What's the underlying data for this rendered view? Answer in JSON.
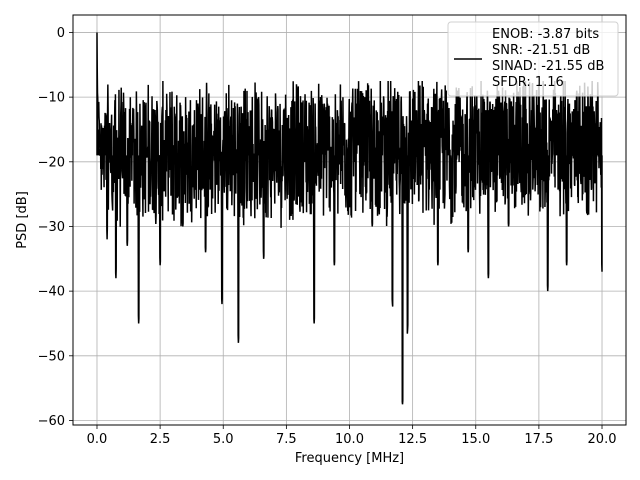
{
  "chart_data": {
    "type": "line",
    "title": "",
    "xlabel": "Frequency [MHz]",
    "ylabel": "PSD [dB]",
    "xlim": [
      -0.95,
      20.95
    ],
    "ylim": [
      -60.7,
      2.7
    ],
    "grid": true,
    "x_ticks": [
      0.0,
      2.5,
      5.0,
      7.5,
      10.0,
      12.5,
      15.0,
      17.5,
      20.0
    ],
    "x_tick_labels": [
      "0.0",
      "2.5",
      "5.0",
      "7.5",
      "10.0",
      "12.5",
      "15.0",
      "17.5",
      "20.0"
    ],
    "y_ticks": [
      0,
      -10,
      -20,
      -30,
      -40,
      -50,
      -60
    ],
    "y_tick_labels": [
      "0",
      "−10",
      "−20",
      "−30",
      "−40",
      "−50",
      "−60"
    ],
    "line_color": "#000000",
    "legend": {
      "placement": "top-right",
      "entries": [
        "ENOB: -3.87 bits",
        "SNR: -21.51 dB",
        "SINAD: -21.55 dB",
        "SFDR: 1.16"
      ]
    },
    "series": [
      {
        "x": [
          0.0,
          0.02,
          0.05,
          0.1,
          0.2,
          0.3,
          0.4,
          0.5,
          0.6,
          0.75,
          0.9,
          1.0,
          1.2,
          1.4,
          1.65,
          2.0,
          2.3,
          2.5,
          2.8,
          3.1,
          3.4,
          3.6,
          4.0,
          4.3,
          4.6,
          4.95,
          5.3,
          5.6,
          6.0,
          6.4,
          6.6,
          7.0,
          7.4,
          7.8,
          8.2,
          8.6,
          9.0,
          9.4,
          9.8,
          10.2,
          10.6,
          10.9,
          11.3,
          11.7,
          12.1,
          12.3,
          12.7,
          13.1,
          13.5,
          13.9,
          14.3,
          14.7,
          15.1,
          15.5,
          15.9,
          16.3,
          16.7,
          17.1,
          17.5,
          17.85,
          18.2,
          18.6,
          19.0,
          19.4,
          19.8,
          20.0
        ],
        "y": [
          0.0,
          -12.0,
          -15.0,
          -18.0,
          -22.0,
          -16.0,
          -32.0,
          -14.0,
          -26.0,
          -38.0,
          -16.0,
          -22.0,
          -33.0,
          -14.0,
          -45.0,
          -18.0,
          -12.0,
          -36.0,
          -17.0,
          -13.0,
          -30.0,
          -20.0,
          -11.0,
          -34.0,
          -16.0,
          -42.0,
          -13.0,
          -48.0,
          -18.0,
          -10.0,
          -35.0,
          -15.0,
          -12.0,
          -26.0,
          -17.0,
          -45.0,
          -11.0,
          -36.0,
          -14.0,
          -20.0,
          -10.0,
          -30.0,
          -13.0,
          -42.0,
          -57.5,
          -46.0,
          -15.0,
          -11.0,
          -36.0,
          -13.0,
          -9.0,
          -34.0,
          -12.0,
          -38.0,
          -9.0,
          -30.0,
          -11.0,
          -25.0,
          -8.0,
          -40.0,
          -12.0,
          -36.0,
          -9.0,
          -28.0,
          -13.0,
          -37.0
        ]
      }
    ]
  }
}
